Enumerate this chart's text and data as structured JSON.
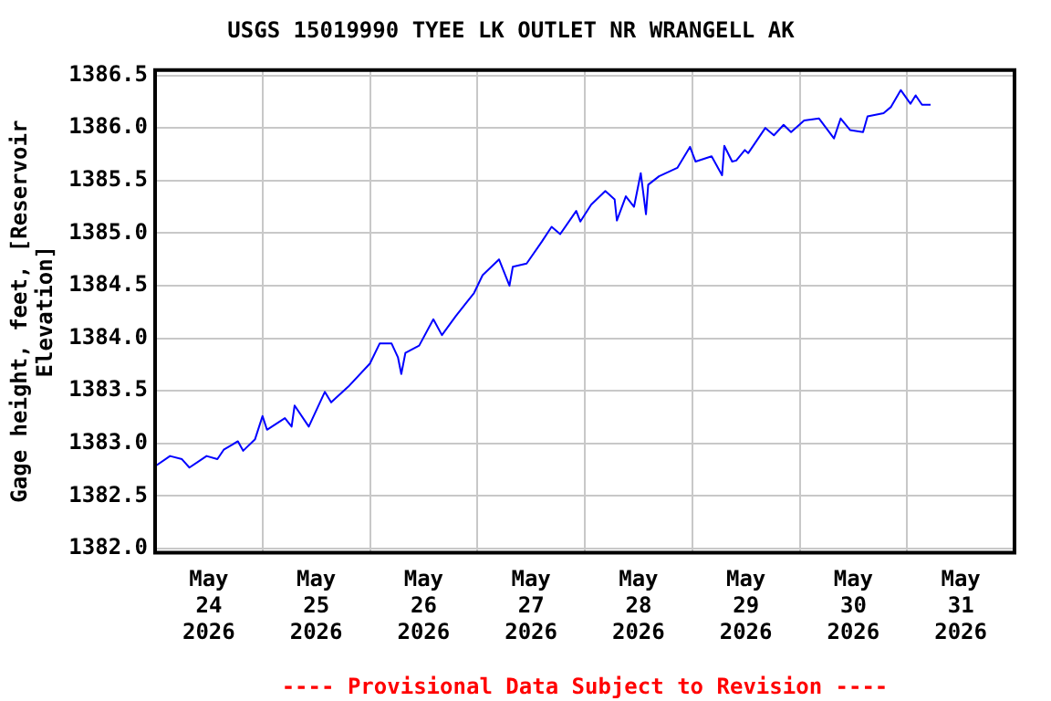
{
  "chart_data": {
    "type": "line",
    "title": "USGS 15019990 TYEE LK OUTLET NR WRANGELL AK",
    "ylabel": "Gage height, feet, [Reservoir Elevation]",
    "annotations": [
      "---- Provisional Data Subject to Revision ----"
    ],
    "x": [
      "2026-05-24T00:15",
      "2026-05-24T03:20",
      "2026-05-24T06:00",
      "2026-05-24T07:40",
      "2026-05-24T11:30",
      "2026-05-24T13:55",
      "2026-05-24T15:20",
      "2026-05-24T18:30",
      "2026-05-24T19:40",
      "2026-05-24T22:20",
      "2026-05-25T00:00",
      "2026-05-25T01:00",
      "2026-05-25T05:00",
      "2026-05-25T06:30",
      "2026-05-25T07:10",
      "2026-05-25T10:20",
      "2026-05-25T13:55",
      "2026-05-25T15:20",
      "2026-05-25T19:10",
      "2026-05-26T00:00",
      "2026-05-26T02:10",
      "2026-05-26T04:50",
      "2026-05-26T06:15",
      "2026-05-26T07:00",
      "2026-05-26T07:55",
      "2026-05-26T11:00",
      "2026-05-26T14:10",
      "2026-05-26T16:05",
      "2026-05-26T19:10",
      "2026-05-26T23:15",
      "2026-05-27T01:10",
      "2026-05-27T04:50",
      "2026-05-27T07:10",
      "2026-05-27T07:55",
      "2026-05-27T11:00",
      "2026-05-27T14:25",
      "2026-05-27T16:35",
      "2026-05-27T18:30",
      "2026-05-27T22:05",
      "2026-05-27T23:00",
      "2026-05-28T01:25",
      "2026-05-28T04:35",
      "2026-05-28T06:40",
      "2026-05-28T07:10",
      "2026-05-28T09:10",
      "2026-05-28T11:00",
      "2026-05-28T12:30",
      "2026-05-28T13:40",
      "2026-05-28T14:10",
      "2026-05-28T16:35",
      "2026-05-28T20:40",
      "2026-05-28T23:30",
      "2026-05-29T00:45",
      "2026-05-29T04:20",
      "2026-05-29T06:40",
      "2026-05-29T07:10",
      "2026-05-29T08:55",
      "2026-05-29T09:50",
      "2026-05-29T11:45",
      "2026-05-29T12:30",
      "2026-05-29T16:20",
      "2026-05-29T18:15",
      "2026-05-29T20:25",
      "2026-05-29T22:05",
      "2026-05-30T01:00",
      "2026-05-30T04:20",
      "2026-05-30T07:40",
      "2026-05-30T09:10",
      "2026-05-30T11:15",
      "2026-05-30T14:10",
      "2026-05-30T15:10",
      "2026-05-30T18:45",
      "2026-05-30T20:25",
      "2026-05-30T22:35",
      "2026-05-31T00:45",
      "2026-05-31T01:55",
      "2026-05-31T03:20",
      "2026-05-31T05:15"
    ],
    "series": [
      {
        "color": "#0000ff",
        "values": [
          1382.79,
          1382.88,
          1382.85,
          1382.77,
          1382.88,
          1382.85,
          1382.94,
          1383.02,
          1382.93,
          1383.04,
          1383.26,
          1383.13,
          1383.24,
          1383.16,
          1383.36,
          1383.16,
          1383.49,
          1383.39,
          1383.54,
          1383.76,
          1383.95,
          1383.95,
          1383.82,
          1383.66,
          1383.86,
          1383.93,
          1384.18,
          1384.03,
          1384.21,
          1384.43,
          1384.6,
          1384.75,
          1384.5,
          1384.68,
          1384.71,
          1384.92,
          1385.06,
          1384.99,
          1385.21,
          1385.11,
          1385.27,
          1385.4,
          1385.32,
          1385.12,
          1385.35,
          1385.25,
          1385.57,
          1385.18,
          1385.46,
          1385.54,
          1385.62,
          1385.82,
          1385.68,
          1385.73,
          1385.55,
          1385.83,
          1385.68,
          1385.69,
          1385.79,
          1385.76,
          1386.0,
          1385.93,
          1386.03,
          1385.96,
          1386.07,
          1386.09,
          1385.9,
          1386.09,
          1385.98,
          1385.96,
          1386.11,
          1386.14,
          1386.2,
          1386.36,
          1386.23,
          1386.31,
          1386.22,
          1386.22
        ]
      }
    ],
    "xlim": [
      "2026-05-24T00:00",
      "2026-06-01T00:00"
    ],
    "xticks": [
      {
        "value": "2026-05-24T00:00",
        "label": null
      },
      {
        "value": "2026-05-24T12:00",
        "label": "May 24 2026"
      },
      {
        "value": "2026-05-25T00:00",
        "label": null
      },
      {
        "value": "2026-05-25T12:00",
        "label": "May 25 2026"
      },
      {
        "value": "2026-05-26T00:00",
        "label": null
      },
      {
        "value": "2026-05-26T12:00",
        "label": "May 26 2026"
      },
      {
        "value": "2026-05-27T00:00",
        "label": null
      },
      {
        "value": "2026-05-27T12:00",
        "label": "May 27 2026"
      },
      {
        "value": "2026-05-28T00:00",
        "label": null
      },
      {
        "value": "2026-05-28T12:00",
        "label": "May 28 2026"
      },
      {
        "value": "2026-05-29T00:00",
        "label": null
      },
      {
        "value": "2026-05-29T12:00",
        "label": "May 29 2026"
      },
      {
        "value": "2026-05-30T00:00",
        "label": null
      },
      {
        "value": "2026-05-30T12:00",
        "label": "May 30 2026"
      },
      {
        "value": "2026-05-31T00:00",
        "label": null
      },
      {
        "value": "2026-05-31T12:00",
        "label": "May 31 2026"
      },
      {
        "value": "2026-06-01T00:00",
        "label": null
      }
    ],
    "ylim": [
      1381.96,
      1386.55
    ],
    "yticks": [
      {
        "value": 1382.0,
        "label": "1382.0"
      },
      {
        "value": 1382.5,
        "label": "1382.5"
      },
      {
        "value": 1383.0,
        "label": "1383.0"
      },
      {
        "value": 1383.5,
        "label": "1383.5"
      },
      {
        "value": 1384.0,
        "label": "1384.0"
      },
      {
        "value": 1384.5,
        "label": "1384.5"
      },
      {
        "value": 1385.0,
        "label": "1385.0"
      },
      {
        "value": 1385.5,
        "label": "1385.5"
      },
      {
        "value": 1386.0,
        "label": "1386.0"
      },
      {
        "value": 1386.5,
        "label": "1386.5"
      }
    ],
    "grid": true,
    "marker": "none",
    "line_style": "solid"
  }
}
